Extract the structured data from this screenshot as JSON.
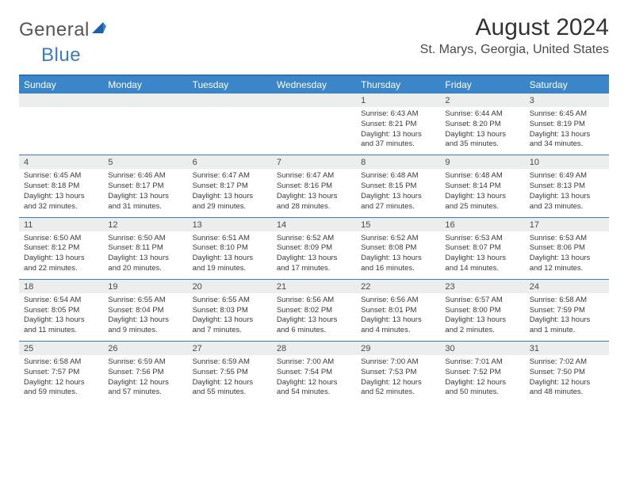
{
  "logo": {
    "text1": "General",
    "text2": "Blue"
  },
  "title": "August 2024",
  "location": "St. Marys, Georgia, United States",
  "colors": {
    "header_bg": "#3a86c8",
    "header_border": "#2f6fb0",
    "week_divider": "#3a7cc4",
    "daynum_bg": "#eceded",
    "text_dark": "#3a3a3a",
    "logo_gray": "#555555",
    "logo_blue": "#3a7cc4"
  },
  "day_names": [
    "Sunday",
    "Monday",
    "Tuesday",
    "Wednesday",
    "Thursday",
    "Friday",
    "Saturday"
  ],
  "weeks": [
    [
      {
        "num": "",
        "lines": []
      },
      {
        "num": "",
        "lines": []
      },
      {
        "num": "",
        "lines": []
      },
      {
        "num": "",
        "lines": []
      },
      {
        "num": "1",
        "lines": [
          "Sunrise: 6:43 AM",
          "Sunset: 8:21 PM",
          "Daylight: 13 hours",
          "and 37 minutes."
        ]
      },
      {
        "num": "2",
        "lines": [
          "Sunrise: 6:44 AM",
          "Sunset: 8:20 PM",
          "Daylight: 13 hours",
          "and 35 minutes."
        ]
      },
      {
        "num": "3",
        "lines": [
          "Sunrise: 6:45 AM",
          "Sunset: 8:19 PM",
          "Daylight: 13 hours",
          "and 34 minutes."
        ]
      }
    ],
    [
      {
        "num": "4",
        "lines": [
          "Sunrise: 6:45 AM",
          "Sunset: 8:18 PM",
          "Daylight: 13 hours",
          "and 32 minutes."
        ]
      },
      {
        "num": "5",
        "lines": [
          "Sunrise: 6:46 AM",
          "Sunset: 8:17 PM",
          "Daylight: 13 hours",
          "and 31 minutes."
        ]
      },
      {
        "num": "6",
        "lines": [
          "Sunrise: 6:47 AM",
          "Sunset: 8:17 PM",
          "Daylight: 13 hours",
          "and 29 minutes."
        ]
      },
      {
        "num": "7",
        "lines": [
          "Sunrise: 6:47 AM",
          "Sunset: 8:16 PM",
          "Daylight: 13 hours",
          "and 28 minutes."
        ]
      },
      {
        "num": "8",
        "lines": [
          "Sunrise: 6:48 AM",
          "Sunset: 8:15 PM",
          "Daylight: 13 hours",
          "and 27 minutes."
        ]
      },
      {
        "num": "9",
        "lines": [
          "Sunrise: 6:48 AM",
          "Sunset: 8:14 PM",
          "Daylight: 13 hours",
          "and 25 minutes."
        ]
      },
      {
        "num": "10",
        "lines": [
          "Sunrise: 6:49 AM",
          "Sunset: 8:13 PM",
          "Daylight: 13 hours",
          "and 23 minutes."
        ]
      }
    ],
    [
      {
        "num": "11",
        "lines": [
          "Sunrise: 6:50 AM",
          "Sunset: 8:12 PM",
          "Daylight: 13 hours",
          "and 22 minutes."
        ]
      },
      {
        "num": "12",
        "lines": [
          "Sunrise: 6:50 AM",
          "Sunset: 8:11 PM",
          "Daylight: 13 hours",
          "and 20 minutes."
        ]
      },
      {
        "num": "13",
        "lines": [
          "Sunrise: 6:51 AM",
          "Sunset: 8:10 PM",
          "Daylight: 13 hours",
          "and 19 minutes."
        ]
      },
      {
        "num": "14",
        "lines": [
          "Sunrise: 6:52 AM",
          "Sunset: 8:09 PM",
          "Daylight: 13 hours",
          "and 17 minutes."
        ]
      },
      {
        "num": "15",
        "lines": [
          "Sunrise: 6:52 AM",
          "Sunset: 8:08 PM",
          "Daylight: 13 hours",
          "and 16 minutes."
        ]
      },
      {
        "num": "16",
        "lines": [
          "Sunrise: 6:53 AM",
          "Sunset: 8:07 PM",
          "Daylight: 13 hours",
          "and 14 minutes."
        ]
      },
      {
        "num": "17",
        "lines": [
          "Sunrise: 6:53 AM",
          "Sunset: 8:06 PM",
          "Daylight: 13 hours",
          "and 12 minutes."
        ]
      }
    ],
    [
      {
        "num": "18",
        "lines": [
          "Sunrise: 6:54 AM",
          "Sunset: 8:05 PM",
          "Daylight: 13 hours",
          "and 11 minutes."
        ]
      },
      {
        "num": "19",
        "lines": [
          "Sunrise: 6:55 AM",
          "Sunset: 8:04 PM",
          "Daylight: 13 hours",
          "and 9 minutes."
        ]
      },
      {
        "num": "20",
        "lines": [
          "Sunrise: 6:55 AM",
          "Sunset: 8:03 PM",
          "Daylight: 13 hours",
          "and 7 minutes."
        ]
      },
      {
        "num": "21",
        "lines": [
          "Sunrise: 6:56 AM",
          "Sunset: 8:02 PM",
          "Daylight: 13 hours",
          "and 6 minutes."
        ]
      },
      {
        "num": "22",
        "lines": [
          "Sunrise: 6:56 AM",
          "Sunset: 8:01 PM",
          "Daylight: 13 hours",
          "and 4 minutes."
        ]
      },
      {
        "num": "23",
        "lines": [
          "Sunrise: 6:57 AM",
          "Sunset: 8:00 PM",
          "Daylight: 13 hours",
          "and 2 minutes."
        ]
      },
      {
        "num": "24",
        "lines": [
          "Sunrise: 6:58 AM",
          "Sunset: 7:59 PM",
          "Daylight: 13 hours",
          "and 1 minute."
        ]
      }
    ],
    [
      {
        "num": "25",
        "lines": [
          "Sunrise: 6:58 AM",
          "Sunset: 7:57 PM",
          "Daylight: 12 hours",
          "and 59 minutes."
        ]
      },
      {
        "num": "26",
        "lines": [
          "Sunrise: 6:59 AM",
          "Sunset: 7:56 PM",
          "Daylight: 12 hours",
          "and 57 minutes."
        ]
      },
      {
        "num": "27",
        "lines": [
          "Sunrise: 6:59 AM",
          "Sunset: 7:55 PM",
          "Daylight: 12 hours",
          "and 55 minutes."
        ]
      },
      {
        "num": "28",
        "lines": [
          "Sunrise: 7:00 AM",
          "Sunset: 7:54 PM",
          "Daylight: 12 hours",
          "and 54 minutes."
        ]
      },
      {
        "num": "29",
        "lines": [
          "Sunrise: 7:00 AM",
          "Sunset: 7:53 PM",
          "Daylight: 12 hours",
          "and 52 minutes."
        ]
      },
      {
        "num": "30",
        "lines": [
          "Sunrise: 7:01 AM",
          "Sunset: 7:52 PM",
          "Daylight: 12 hours",
          "and 50 minutes."
        ]
      },
      {
        "num": "31",
        "lines": [
          "Sunrise: 7:02 AM",
          "Sunset: 7:50 PM",
          "Daylight: 12 hours",
          "and 48 minutes."
        ]
      }
    ]
  ]
}
